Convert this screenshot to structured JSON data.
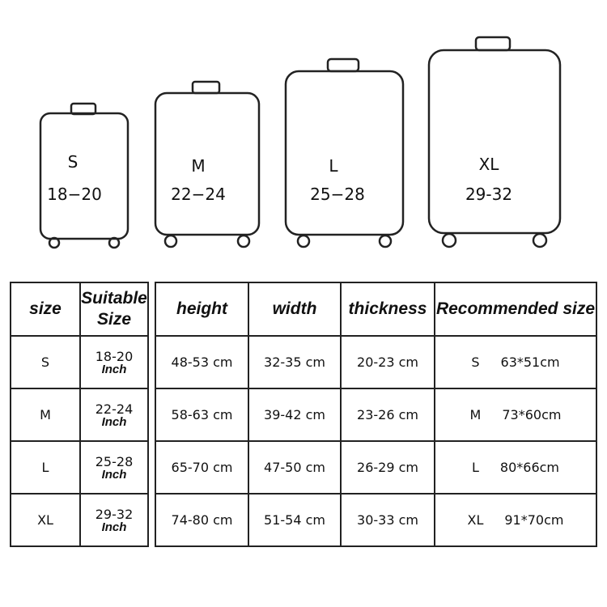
{
  "luggage": [
    {
      "size": "S",
      "range": "18−20"
    },
    {
      "size": "M",
      "range": "22−24"
    },
    {
      "size": "L",
      "range": "25−28"
    },
    {
      "size": "XL",
      "range": "29-32"
    }
  ],
  "left_table": {
    "headers": [
      "size",
      "Suitable Size"
    ],
    "unit": "Inch",
    "rows": [
      {
        "size": "S",
        "range": "18-20"
      },
      {
        "size": "M",
        "range": "22-24"
      },
      {
        "size": "L",
        "range": "25-28"
      },
      {
        "size": "XL",
        "range": "29-32"
      }
    ]
  },
  "right_table": {
    "headers": [
      "height",
      "width",
      "thickness",
      "Recommended size"
    ],
    "rows": [
      {
        "height": "48-53 cm",
        "width": "32-35 cm",
        "thickness": "20-23 cm",
        "rec_size": "S",
        "rec_dim": "63*51cm"
      },
      {
        "height": "58-63 cm",
        "width": "39-42 cm",
        "thickness": "23-26 cm",
        "rec_size": "M",
        "rec_dim": "73*60cm"
      },
      {
        "height": "65-70 cm",
        "width": "47-50 cm",
        "thickness": "26-29 cm",
        "rec_size": "L",
        "rec_dim": "80*66cm"
      },
      {
        "height": "74-80 cm",
        "width": "51-54 cm",
        "thickness": "30-33 cm",
        "rec_size": "XL",
        "rec_dim": "91*70cm"
      }
    ]
  }
}
